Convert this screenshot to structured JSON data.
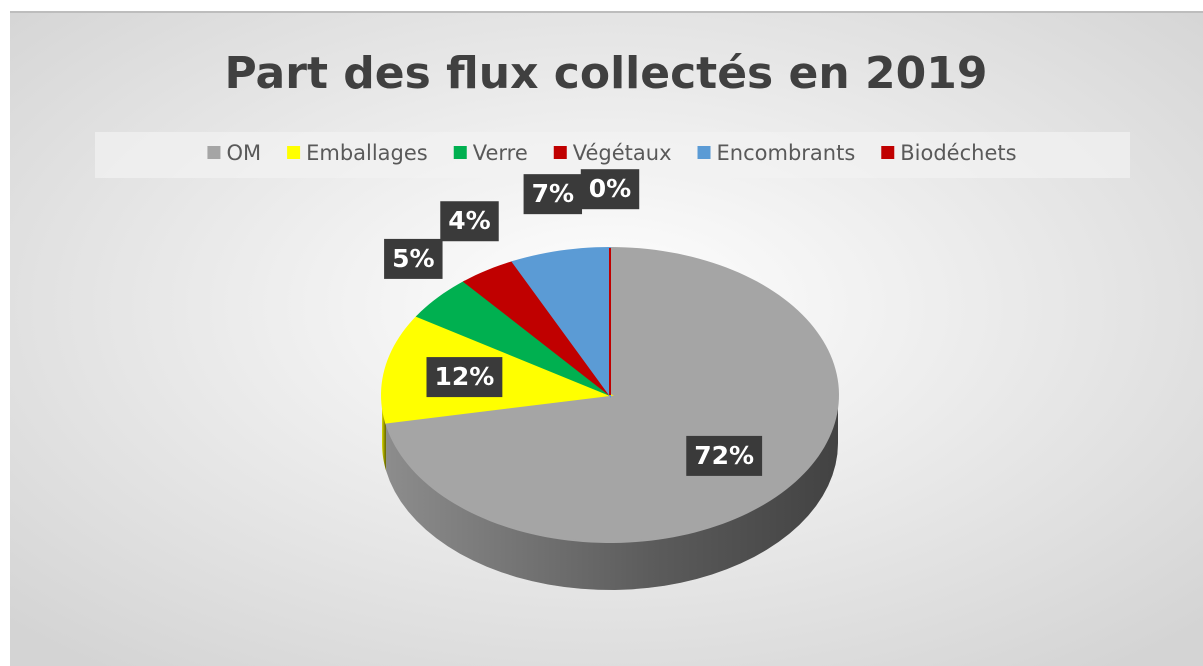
{
  "chart_data": {
    "type": "pie",
    "title": "Part des flux collectés en 2019",
    "categories": [
      "OM",
      "Emballages",
      "Verre",
      "Végétaux",
      "Encombrants",
      "Biodéchets"
    ],
    "values": [
      72,
      12,
      5,
      4,
      7,
      0
    ],
    "value_labels": [
      "72%",
      "12%",
      "5%",
      "4%",
      "7%",
      "0%"
    ],
    "colors": [
      "#a5a5a5",
      "#ffff00",
      "#00b050",
      "#c00000",
      "#5b9bd5",
      "#c00000"
    ],
    "legend": "top"
  }
}
